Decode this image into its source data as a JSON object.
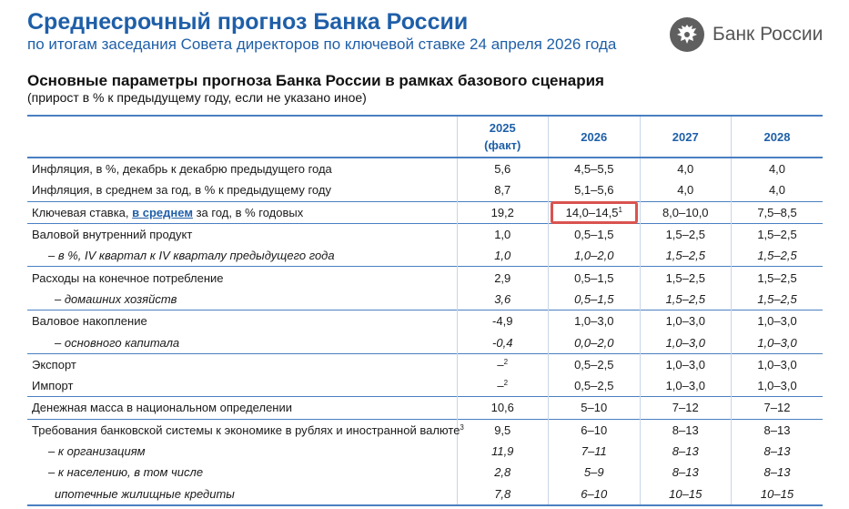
{
  "header": {
    "title": "Среднесрочный прогноз Банка России",
    "subtitle": "по итогам заседания Совета директоров по ключевой ставке 24 апреля 2026 года",
    "logo_text": "Банк России",
    "logo_icon": "double-headed-eagle-icon"
  },
  "section": {
    "title": "Основные параметры прогноза Банка России в рамках базового сценария",
    "note": "(прирост в % к предыдущему году, если не указано иное)"
  },
  "table": {
    "headers": {
      "y2025_line1": "2025",
      "y2025_line2": "(факт)",
      "y2026": "2026",
      "y2027": "2027",
      "y2028": "2028"
    },
    "rows": [
      {
        "label": "Инфляция, в %, декабрь к декабрю предыдущего года",
        "v2025": "5,6",
        "v2026": "4,5–5,5",
        "v2027": "4,0",
        "v2028": "4,0"
      },
      {
        "label": "Инфляция, в среднем за год, в % к предыдущему году",
        "v2025": "8,7",
        "v2026": "5,1–5,6",
        "v2027": "4,0",
        "v2028": "4,0"
      },
      {
        "label_before": "Ключевая ставка,",
        "label_link": "в среднем",
        "label_after": "за год, в % годовых",
        "v2025": "19,2",
        "v2026": "14,0–14,5",
        "v2026_note": "1",
        "v2027": "8,0–10,0",
        "v2028": "7,5–8,5"
      },
      {
        "label": "Валовой внутренний продукт",
        "v2025": "1,0",
        "v2026": "0,5–1,5",
        "v2027": "1,5–2,5",
        "v2028": "1,5–2,5"
      },
      {
        "label": "– в %, IV квартал к IV кварталу предыдущего года",
        "v2025": "1,0",
        "v2026": "1,0–2,0",
        "v2027": "1,5–2,5",
        "v2028": "1,5–2,5"
      },
      {
        "label": "Расходы на конечное потребление",
        "v2025": "2,9",
        "v2026": "0,5–1,5",
        "v2027": "1,5–2,5",
        "v2028": "1,5–2,5"
      },
      {
        "label": "– домашних хозяйств",
        "v2025": "3,6",
        "v2026": "0,5–1,5",
        "v2027": "1,5–2,5",
        "v2028": "1,5–2,5"
      },
      {
        "label": "Валовое накопление",
        "v2025": "-4,9",
        "v2026": "1,0–3,0",
        "v2027": "1,0–3,0",
        "v2028": "1,0–3,0"
      },
      {
        "label": "– основного капитала",
        "v2025": "-0,4",
        "v2026": "0,0–2,0",
        "v2027": "1,0–3,0",
        "v2028": "1,0–3,0"
      },
      {
        "label": "Экспорт",
        "v2025": "–",
        "v2025_note": "2",
        "v2026": "0,5–2,5",
        "v2027": "1,0–3,0",
        "v2028": "1,0–3,0"
      },
      {
        "label": "Импорт",
        "v2025": "–",
        "v2025_note": "2",
        "v2026": "0,5–2,5",
        "v2027": "1,0–3,0",
        "v2028": "1,0–3,0"
      },
      {
        "label": "Денежная масса в национальном определении",
        "v2025": "10,6",
        "v2026": "5–10",
        "v2027": "7–12",
        "v2028": "7–12"
      },
      {
        "label": "Требования банковской системы к экономике в рублях и иностранной валюте",
        "label_note": "3",
        "v2025": "9,5",
        "v2026": "6–10",
        "v2027": "8–13",
        "v2028": "8–13"
      },
      {
        "label": "– к организациям",
        "v2025": "11,9",
        "v2026": "7–11",
        "v2027": "8–13",
        "v2028": "8–13"
      },
      {
        "label": "– к населению, в том числе",
        "v2025": "2,8",
        "v2026": "5–9",
        "v2027": "8–13",
        "v2028": "8–13"
      },
      {
        "label": "ипотечные жилищные кредиты",
        "v2025": "7,8",
        "v2026": "6–10",
        "v2027": "10–15",
        "v2028": "10–15"
      }
    ]
  },
  "colors": {
    "title_blue": "#1f5fa8",
    "rule_blue": "#4a7fc1",
    "highlight_red": "#d9534f"
  }
}
